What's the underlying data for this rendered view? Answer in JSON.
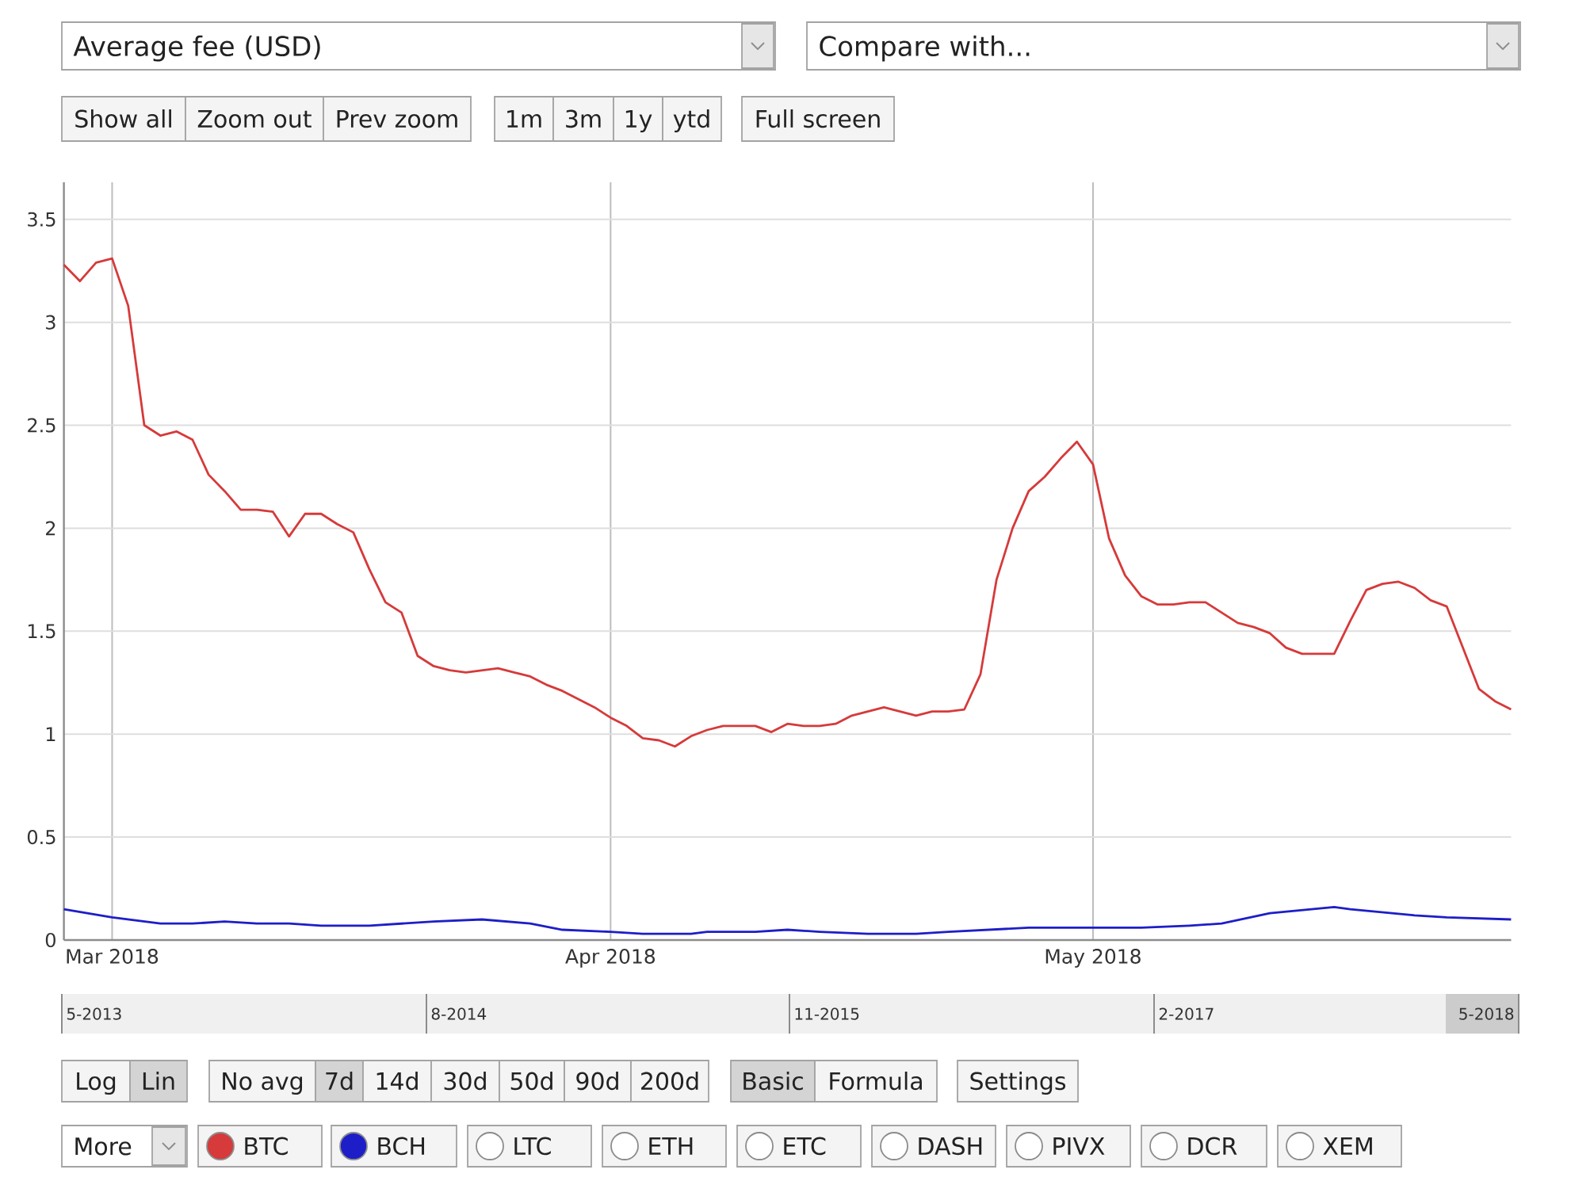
{
  "chart_data": {
    "type": "line",
    "title": "Average fee (USD)",
    "annotations": [
      "Compare with...",
      "Show all",
      "Zoom out",
      "Prev zoom",
      "1m",
      "3m",
      "1y",
      "ytd",
      "Full screen",
      "5-2013",
      "8-2014",
      "11-2015",
      "2-2017",
      "5-2018",
      "Log",
      "Lin",
      "No avg",
      "7d",
      "14d",
      "30d",
      "50d",
      "90d",
      "200d",
      "Basic",
      "Formula",
      "Settings",
      "More",
      "LTC",
      "ETH",
      "ETC",
      "DASH",
      "PIVX",
      "DCR",
      "XEM"
    ],
    "xlim": [
      "2018-02-26",
      "2018-05-27"
    ],
    "xticks": [
      {
        "value": "2018-03-01",
        "label": "Mar 2018"
      },
      {
        "value": "2018-04-01",
        "label": "Apr 2018"
      },
      {
        "value": "2018-05-01",
        "label": "May 2018"
      }
    ],
    "ylim": [
      0,
      3.68
    ],
    "yticks": [
      0,
      0.5,
      1,
      1.5,
      2,
      2.5,
      3,
      3.5
    ],
    "grid": true,
    "legend": "bottom",
    "series": [
      {
        "name": "BTC",
        "color": "#d63a3a",
        "x": [
          "2018-02-26",
          "2018-02-27",
          "2018-02-28",
          "2018-03-01",
          "2018-03-02",
          "2018-03-03",
          "2018-03-04",
          "2018-03-05",
          "2018-03-06",
          "2018-03-07",
          "2018-03-08",
          "2018-03-09",
          "2018-03-10",
          "2018-03-11",
          "2018-03-12",
          "2018-03-13",
          "2018-03-14",
          "2018-03-15",
          "2018-03-16",
          "2018-03-17",
          "2018-03-18",
          "2018-03-19",
          "2018-03-20",
          "2018-03-21",
          "2018-03-22",
          "2018-03-23",
          "2018-03-24",
          "2018-03-25",
          "2018-03-26",
          "2018-03-27",
          "2018-03-28",
          "2018-03-29",
          "2018-03-30",
          "2018-03-31",
          "2018-04-01",
          "2018-04-02",
          "2018-04-03",
          "2018-04-04",
          "2018-04-05",
          "2018-04-06",
          "2018-04-07",
          "2018-04-08",
          "2018-04-09",
          "2018-04-10",
          "2018-04-11",
          "2018-04-12",
          "2018-04-13",
          "2018-04-14",
          "2018-04-15",
          "2018-04-16",
          "2018-04-17",
          "2018-04-18",
          "2018-04-19",
          "2018-04-20",
          "2018-04-21",
          "2018-04-22",
          "2018-04-23",
          "2018-04-24",
          "2018-04-25",
          "2018-04-26",
          "2018-04-27",
          "2018-04-28",
          "2018-04-29",
          "2018-04-30",
          "2018-05-01",
          "2018-05-02",
          "2018-05-03",
          "2018-05-04",
          "2018-05-05",
          "2018-05-06",
          "2018-05-07",
          "2018-05-08",
          "2018-05-09",
          "2018-05-10",
          "2018-05-11",
          "2018-05-12",
          "2018-05-13",
          "2018-05-14",
          "2018-05-15",
          "2018-05-16",
          "2018-05-17",
          "2018-05-18",
          "2018-05-19",
          "2018-05-20",
          "2018-05-21",
          "2018-05-22",
          "2018-05-23",
          "2018-05-24",
          "2018-05-25",
          "2018-05-26",
          "2018-05-27"
        ],
        "values": [
          3.28,
          3.2,
          3.29,
          3.31,
          3.08,
          2.5,
          2.45,
          2.47,
          2.43,
          2.26,
          2.18,
          2.09,
          2.09,
          2.08,
          1.96,
          2.07,
          2.07,
          2.02,
          1.98,
          1.8,
          1.64,
          1.59,
          1.38,
          1.33,
          1.31,
          1.3,
          1.31,
          1.32,
          1.3,
          1.28,
          1.24,
          1.21,
          1.17,
          1.13,
          1.08,
          1.04,
          0.98,
          0.97,
          0.94,
          0.99,
          1.02,
          1.04,
          1.04,
          1.04,
          1.01,
          1.05,
          1.04,
          1.04,
          1.05,
          1.09,
          1.11,
          1.13,
          1.11,
          1.09,
          1.11,
          1.11,
          1.12,
          1.29,
          1.75,
          2.0,
          2.18,
          2.25,
          2.34,
          2.42,
          2.31,
          1.95,
          1.77,
          1.67,
          1.63,
          1.63,
          1.64,
          1.64,
          1.59,
          1.54,
          1.52,
          1.49,
          1.42,
          1.39,
          1.39,
          1.39,
          1.55,
          1.7,
          1.73,
          1.74,
          1.71,
          1.65,
          1.62,
          1.42,
          1.22,
          1.16,
          1.12
        ]
      },
      {
        "name": "BCH",
        "color": "#1e1ec8",
        "x": [
          "2018-02-26",
          "2018-03-01",
          "2018-03-04",
          "2018-03-06",
          "2018-03-08",
          "2018-03-10",
          "2018-03-12",
          "2018-03-14",
          "2018-03-17",
          "2018-03-19",
          "2018-03-21",
          "2018-03-24",
          "2018-03-27",
          "2018-03-29",
          "2018-04-01",
          "2018-04-03",
          "2018-04-06",
          "2018-04-07",
          "2018-04-10",
          "2018-04-12",
          "2018-04-14",
          "2018-04-17",
          "2018-04-20",
          "2018-04-22",
          "2018-04-27",
          "2018-05-01",
          "2018-05-04",
          "2018-05-07",
          "2018-05-09",
          "2018-05-12",
          "2018-05-16",
          "2018-05-17",
          "2018-05-21",
          "2018-05-23",
          "2018-05-27"
        ],
        "values": [
          0.15,
          0.11,
          0.08,
          0.08,
          0.09,
          0.08,
          0.08,
          0.07,
          0.07,
          0.08,
          0.09,
          0.1,
          0.08,
          0.05,
          0.04,
          0.03,
          0.03,
          0.04,
          0.04,
          0.05,
          0.04,
          0.03,
          0.03,
          0.04,
          0.06,
          0.06,
          0.06,
          0.07,
          0.08,
          0.13,
          0.16,
          0.15,
          0.12,
          0.11,
          0.1
        ]
      }
    ]
  }
}
